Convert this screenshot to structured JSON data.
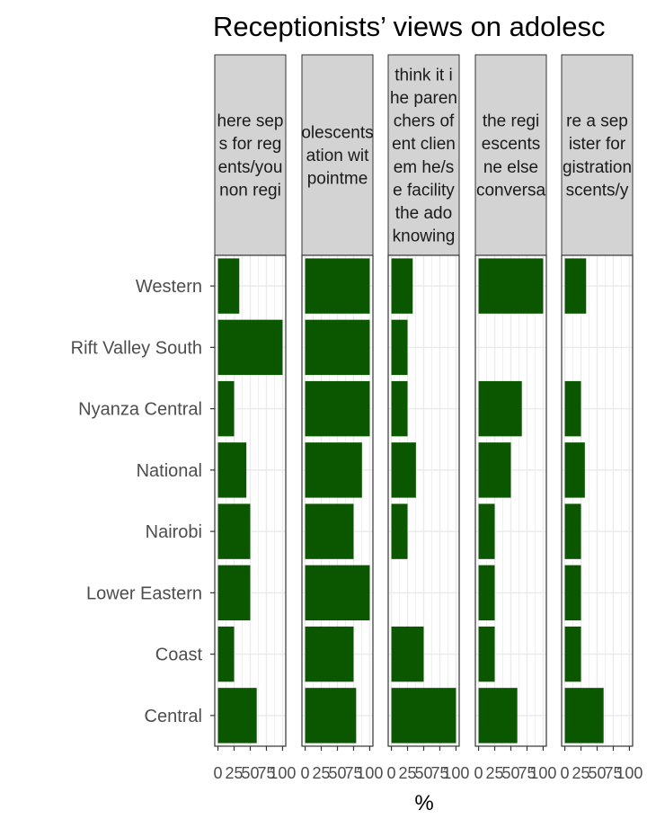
{
  "chart_data": {
    "type": "bar",
    "orientation": "horizontal",
    "title": "Receptionists’ views on adolesc",
    "xlabel": "%",
    "ylabel": "",
    "xlim": [
      0,
      100
    ],
    "x_ticks": [
      "0",
      "25",
      "50",
      "75",
      "100"
    ],
    "bar_color": "#0b5700",
    "strip_color": "#d3d3d3",
    "categories": [
      "Western",
      "Rift Valley South",
      "Nyanza Central",
      "National",
      "Nairobi",
      "Lower Eastern",
      "Coast",
      "Central"
    ],
    "panels": [
      {
        "strip_lines": [
          "here sep",
          "s for reg",
          "ents/you",
          "non regi"
        ],
        "values": [
          33,
          100,
          25,
          44,
          50,
          50,
          25,
          60
        ]
      },
      {
        "strip_lines": [
          "olescents",
          "ation wit",
          "pointme"
        ],
        "values": [
          100,
          100,
          100,
          88,
          75,
          100,
          75,
          79
        ]
      },
      {
        "strip_lines": [
          "think it i",
          "he paren",
          "chers of",
          "ent clien",
          "em he/s",
          "e facility",
          "the ado",
          "knowing"
        ],
        "values": [
          33,
          25,
          25,
          38,
          25,
          0,
          50,
          100
        ]
      },
      {
        "strip_lines": [
          "the regi",
          "escents",
          "ne else",
          "conversa"
        ],
        "values": [
          100,
          0,
          67,
          50,
          25,
          25,
          25,
          60
        ]
      },
      {
        "strip_lines": [
          "re a sep",
          "ister for",
          "gistration",
          "scents/y"
        ],
        "values": [
          33,
          0,
          25,
          31,
          25,
          25,
          25,
          60
        ]
      }
    ]
  }
}
